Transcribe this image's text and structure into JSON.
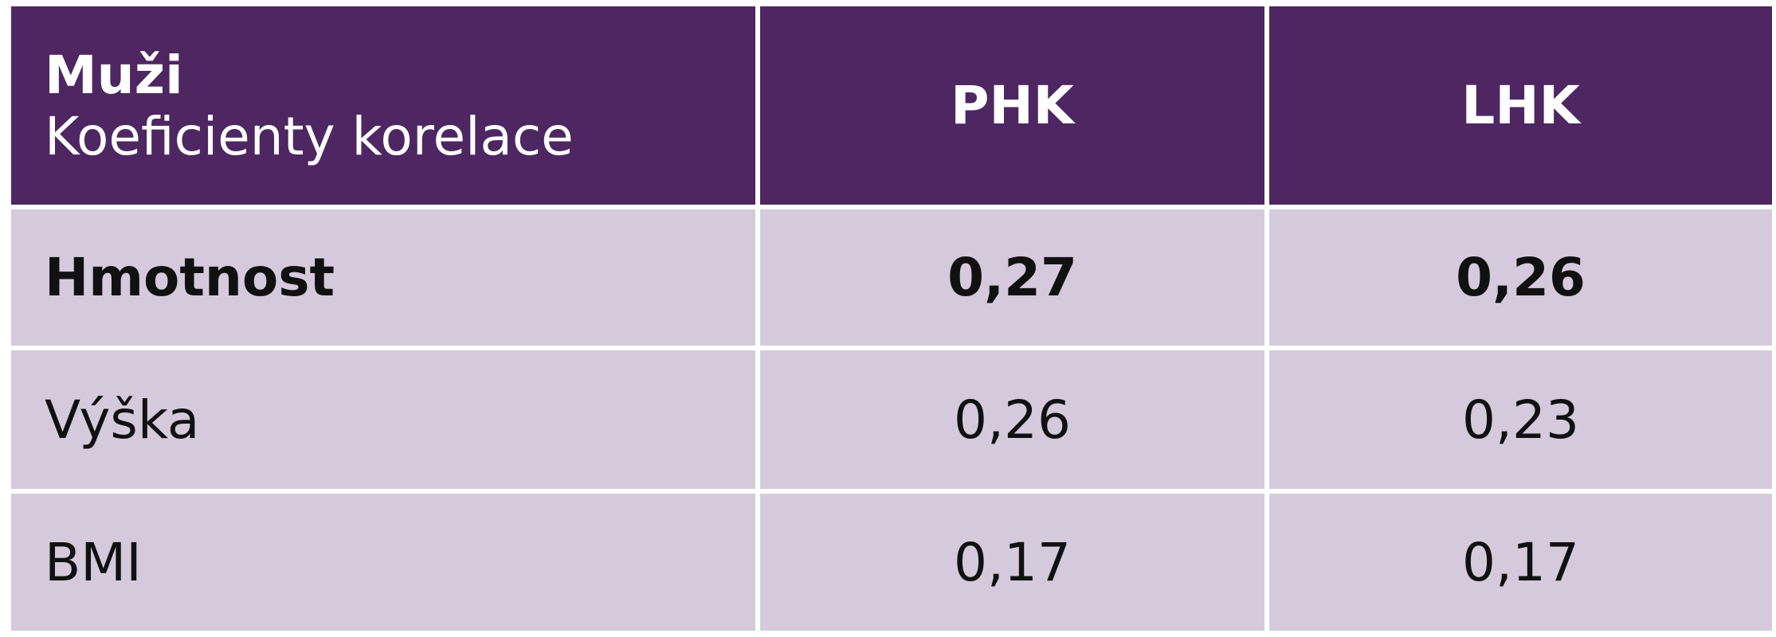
{
  "header": {
    "title": "Muži",
    "subtitle": "Koeficienty korelace",
    "columns": [
      "PHK",
      "LHK"
    ]
  },
  "table": {
    "rows": [
      [
        "Hmotnost",
        "0,27",
        "0,26"
      ],
      [
        "Výška",
        "0,26",
        "0,23"
      ],
      [
        "BMI",
        "0,17",
        "0,17"
      ]
    ]
  }
}
